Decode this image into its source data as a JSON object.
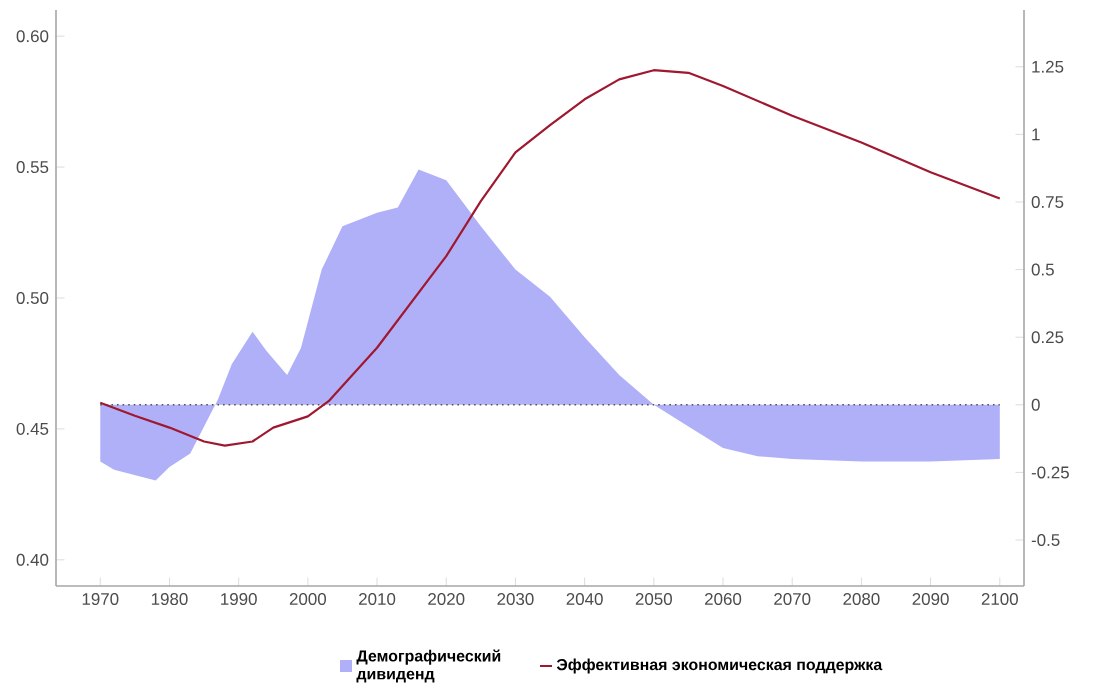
{
  "chart_data": {
    "type": "line",
    "x": [
      1970,
      1975,
      1980,
      1985,
      1988,
      1992,
      1995,
      2000,
      2003,
      2010,
      2020,
      2025,
      2030,
      2035,
      2040,
      2045,
      2050,
      2055,
      2060,
      2070,
      2080,
      2090,
      2100
    ],
    "series": [
      {
        "name": "Демографический дивиденд",
        "type": "area",
        "axis": "y2",
        "color": "#b0b0f8",
        "x": [
          1970,
          1972,
          1975,
          1978,
          1980,
          1983,
          1985,
          1987,
          1989,
          1992,
          1994,
          1997,
          1999,
          2002,
          2005,
          2010,
          2013,
          2016,
          2020,
          2025,
          2030,
          2035,
          2040,
          2045,
          2050,
          2055,
          2060,
          2065,
          2070,
          2080,
          2090,
          2100
        ],
        "values": [
          -0.21,
          -0.24,
          -0.26,
          -0.28,
          -0.23,
          -0.18,
          -0.08,
          0.02,
          0.15,
          0.27,
          0.2,
          0.11,
          0.21,
          0.5,
          0.66,
          0.71,
          0.73,
          0.87,
          0.83,
          0.66,
          0.5,
          0.4,
          0.25,
          0.11,
          0,
          -0.08,
          -0.16,
          -0.19,
          -0.2,
          -0.21,
          -0.21,
          -0.2
        ]
      },
      {
        "name": "Эффективная экономическая поддержка",
        "axis": "y",
        "color": "#a01830",
        "values": [
          0.46,
          0.455,
          0.4505,
          0.4452,
          0.4436,
          0.4452,
          0.4505,
          0.4548,
          0.4606,
          0.481,
          0.516,
          0.537,
          0.5556,
          0.566,
          0.5759,
          0.5835,
          0.587,
          0.586,
          0.581,
          0.5696,
          0.5594,
          0.548,
          0.538
        ]
      }
    ],
    "xlim": [
      1963.6,
      2103.5
    ],
    "xticks": [
      1970,
      1980,
      1990,
      2000,
      2010,
      2020,
      2030,
      2040,
      2050,
      2060,
      2070,
      2080,
      2090,
      2100
    ],
    "ylim": [
      0.39,
      0.61
    ],
    "yticks": [
      {
        "value": 0.4,
        "label": "0.40"
      },
      {
        "value": 0.45,
        "label": "0.45"
      },
      {
        "value": 0.5,
        "label": "0.50"
      },
      {
        "value": 0.55,
        "label": "0.55"
      },
      {
        "value": 0.6,
        "label": "0.60"
      }
    ],
    "y2lim": [
      -0.67,
      1.46
    ],
    "y2ticks": [
      -0.5,
      -0.25,
      0,
      0.25,
      0.5,
      0.75,
      1,
      1.25
    ],
    "ref_lines": [
      {
        "axis": "y2",
        "value": 0,
        "color": "#555555",
        "line_style": "dotted"
      }
    ],
    "legend": "bottom",
    "grid": false
  }
}
